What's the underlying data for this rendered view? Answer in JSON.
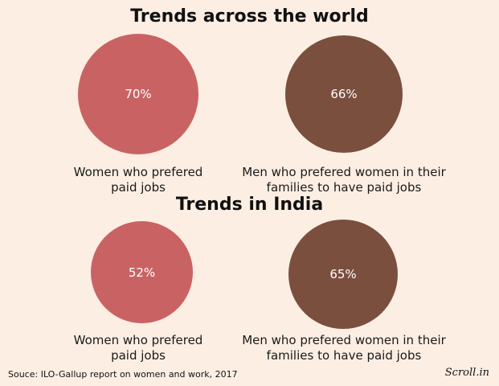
{
  "colors": {
    "background": "#fdeee3",
    "women": "#c96363",
    "men": "#7a4f3e"
  },
  "chart_data": [
    {
      "type": "pie",
      "title": "Trends across the world",
      "items": [
        {
          "label": "Women who prefered paid jobs",
          "value": 70,
          "value_label": "70%",
          "color": "#c96363"
        },
        {
          "label": "Men who prefered women in their families to have paid jobs",
          "value": 66,
          "value_label": "66%",
          "color": "#7a4f3e"
        }
      ]
    },
    {
      "type": "pie",
      "title": "Trends in India",
      "items": [
        {
          "label": "Women who prefered paid jobs",
          "value": 52,
          "value_label": "52%",
          "color": "#c96363"
        },
        {
          "label": "Men who prefered women in their families to have paid jobs",
          "value": 65,
          "value_label": "65%",
          "color": "#7a4f3e"
        }
      ]
    }
  ],
  "captions": {
    "women_line1": "Women who prefered",
    "women_line2": "paid jobs",
    "men_line1": "Men who prefered women in their",
    "men_line2": "families to have paid jobs"
  },
  "footer": {
    "source": "Souce: ILO-Gallup report on women and work, 2017",
    "logo": "Scroll.in"
  }
}
